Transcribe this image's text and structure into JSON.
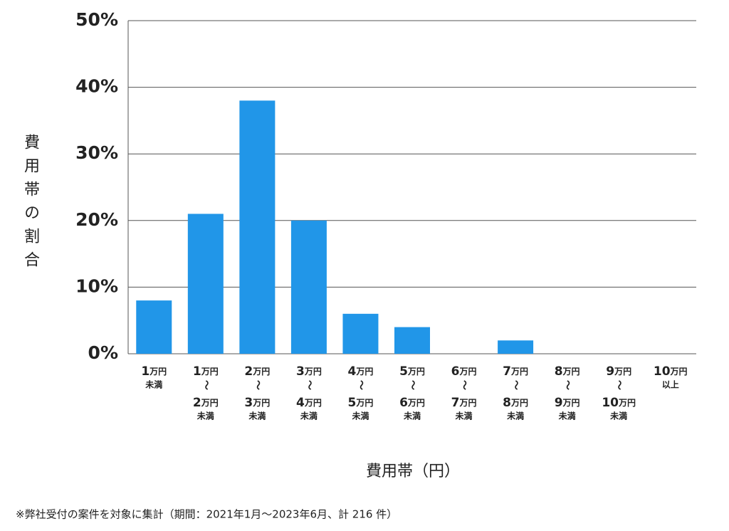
{
  "chart_data": {
    "type": "bar",
    "y_axis_label": "費用帯の割合",
    "x_axis_label": "費用帯（円）",
    "footnote": "※弊社受付の案件を対象に集計（期間：2021年1月～2023年6月、計 216 件）",
    "categories": [
      [
        "1万円",
        "未満"
      ],
      [
        "1万円",
        "〜",
        "2万円",
        "未満"
      ],
      [
        "2万円",
        "〜",
        "3万円",
        "未満"
      ],
      [
        "3万円",
        "〜",
        "4万円",
        "未満"
      ],
      [
        "4万円",
        "〜",
        "5万円",
        "未満"
      ],
      [
        "5万円",
        "〜",
        "6万円",
        "未満"
      ],
      [
        "6万円",
        "〜",
        "7万円",
        "未満"
      ],
      [
        "7万円",
        "〜",
        "8万円",
        "未満"
      ],
      [
        "8万円",
        "〜",
        "9万円",
        "未満"
      ],
      [
        "9万円",
        "〜",
        "10万円",
        "未満"
      ],
      [
        "10万円",
        "以上"
      ]
    ],
    "values": [
      8,
      21,
      38,
      20,
      6,
      4,
      0,
      2,
      0,
      0,
      0
    ],
    "color": "#2196e8",
    "ylim": [
      0,
      50
    ],
    "yticks": [
      {
        "value": 0,
        "label": "0%"
      },
      {
        "value": 10,
        "label": "10%"
      },
      {
        "value": 20,
        "label": "20%"
      },
      {
        "value": 30,
        "label": "30%"
      },
      {
        "value": 40,
        "label": "40%"
      },
      {
        "value": 50,
        "label": "50%"
      }
    ],
    "grid": true
  }
}
